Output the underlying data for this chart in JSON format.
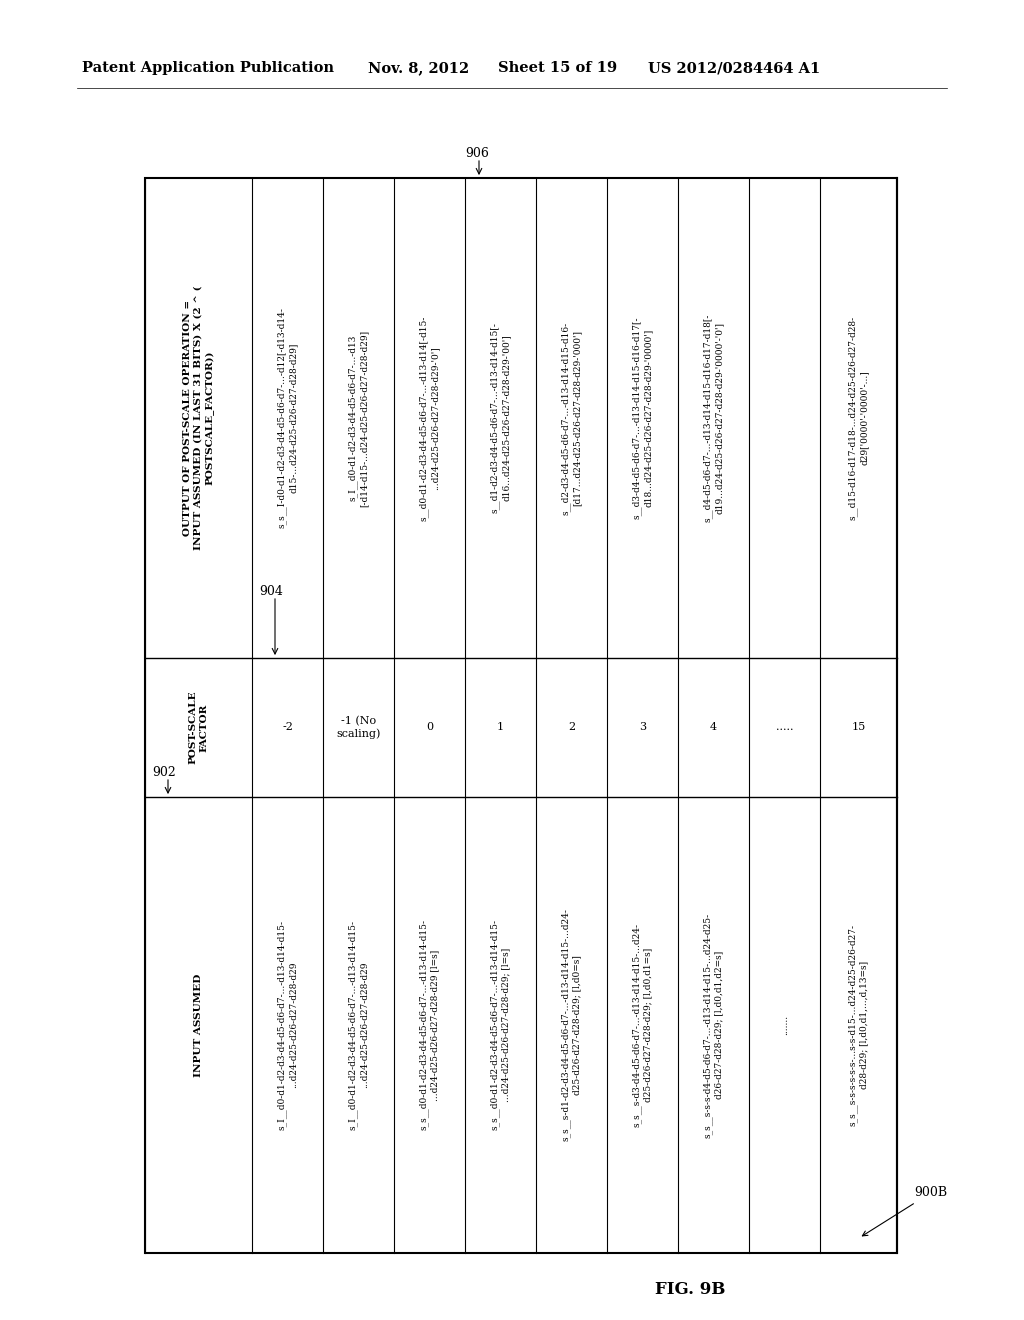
{
  "header_line1": "Patent Application Publication",
  "header_date": "Nov. 8, 2012",
  "header_sheet": "Sheet 15 of 19",
  "header_patent": "US 2012/0284464 A1",
  "fig_label": "FIG. 9B",
  "fig_ref": "900B",
  "col1_ref": "902",
  "col2_ref": "904",
  "col3_ref": "906",
  "col1_header": "INPUT ASSUMED",
  "col2_header": "POST-SCALE\nFACTOR",
  "col3_header": "OUTPUT OF POST-SCALE OPERATION =\nINPUT ASSUMED (IN LAST 31 BITS) X (2 ^ (\nPOSTSCALE_FACTOR))",
  "rows": [
    {
      "col1": "s_I__d0-d1-d2-d3-d4-d5-d6-d7-...-d13-d14-d15-\n...d24-d25-d26-d27-d28-d29",
      "col2": "-2",
      "col3": "s_s__I-d0-d1-d2-d3-d4-d5-d6-d7-...-d12[-d13-d14-\nd15-...d24-d25-d26-d27-d28-d29]"
    },
    {
      "col1": "s_I__d0-d1-d2-d3-d4-d5-d6-d7-...-d13-d14-d15-\n...d24-d25-d26-d27-d28-d29",
      "col2": "-1 (No\nscaling)",
      "col3": "s_I__d0-d1-d2-d3-d4-d5-d6-d7-...-d13\n[-d14-d15-...d24-d25-d26-d27-d28-d29]"
    },
    {
      "col1": "s_s__d0-d1-d2-d3-d4-d5-d6-d7-...-d13-d14-d15-\n...d24-d25-d26-d27-d28-d29 [l=s]",
      "col2": "0",
      "col3": "s__d0-d1-d2-d3-d4-d5-d6-d7-...-d13-d14[-d15-\n...d24-d25-d26-d27-d28-d29-'0']"
    },
    {
      "col1": "s_s__d0-d1-d2-d3-d4-d5-d6-d7-...-d13-d14-d15-\n...d24-d25-d26-d27-d28-d29; [l=s]",
      "col2": "1",
      "col3": "s__d1-d2-d3-d4-d5-d6-d7-...-d13-d14-d15[-\nd16...d24-d25-d26-d27-d28-d29-'00']"
    },
    {
      "col1": "s_s__s-d1-d2-d3-d4-d5-d6-d7-...-d13-d14-d15-...d24-\nd25-d26-d27-d28-d29; [l,d0=s]",
      "col2": "2",
      "col3": "s__d2-d3-d4-d5-d6-d7-...-d13-d14-d15-d16-\n[d17...d24-d25-d26-d27-d28-d29-'000']"
    },
    {
      "col1": "s_s__s-d3-d4-d5-d6-d7-...-d13-d14-d15-...d24-\nd25-d26-d27-d28-d29; [l,d0,d1=s]",
      "col2": "3",
      "col3": "s__d3-d4-d5-d6-d7-...-d13-d14-d15-d16-d17[-\nd18...d24-d25-d26-d27-d28-d29-'0000']"
    },
    {
      "col1": "s_s__s-s-s-d4-d5-d6-d7-...-d13-d14-d15-...d24-d25-\nd26-d27-d28-d29; [l,d0,d1,d2=s]",
      "col2": "4",
      "col3": "s__d4-d5-d6-d7-...-d13-d14-d15-d16-d17-d18[-\nd19...d24-d25-d26-d27-d28-d29-'0000'-'0']"
    },
    {
      "col1": ".......",
      "col2": ".....",
      "col3": ""
    },
    {
      "col1": "s_s__s-s-s-s-s-s-...s-s-d15-...d24-d25-d26-d27-\nd28-d29; [l,d0,d1,...,d,13=s]",
      "col2": "15",
      "col3": "s__d15-d16-d17-d18-...d24-d25-d26-d27-d28-\nd29['0000'-'0000'-...]"
    }
  ],
  "background_color": "#ffffff",
  "text_color": "#000000",
  "table_lw_outer": 1.5,
  "table_lw_inner": 0.8
}
